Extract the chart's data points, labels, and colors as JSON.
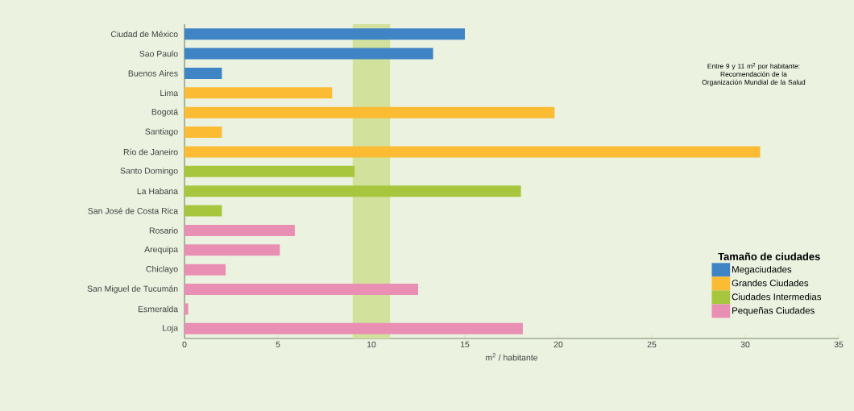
{
  "chart_data": {
    "type": "bar",
    "orientation": "horizontal",
    "xlabel": "m$^{2}$ / habitante",
    "legend_title": "Tamaño de ciudades",
    "legend": "bottom right",
    "categories": [
      "Ciudad de México",
      "Sao Paulo",
      "Buenos Aires",
      "Lima",
      "Bogotá",
      "Santiago",
      "Río de Janeiro",
      "Santo Domingo",
      "La Habana",
      "San José de Costa Rica",
      "Rosario",
      "Arequipa",
      "Chiclayo",
      "San Miguel de Tucumán",
      "Esmeralda",
      "Loja"
    ],
    "series": [
      {
        "name": "Megaciudades",
        "color": "#3f84c5",
        "values": [
          15,
          13.3,
          2,
          null,
          null,
          null,
          null,
          null,
          null,
          null,
          null,
          null,
          null,
          null,
          null,
          null
        ]
      },
      {
        "name": "Grandes Ciudades",
        "color": "#fbbb33",
        "values": [
          null,
          null,
          null,
          7.9,
          19.8,
          2,
          30.8,
          null,
          null,
          null,
          null,
          null,
          null,
          null,
          null,
          null
        ]
      },
      {
        "name": "Ciudades Intermedias",
        "color": "#a8c63d",
        "values": [
          null,
          null,
          null,
          null,
          null,
          null,
          null,
          9.1,
          18,
          2,
          null,
          null,
          null,
          null,
          null,
          null
        ]
      },
      {
        "name": "Pequeñas Ciudades",
        "color": "#ea8fb4",
        "values": [
          null,
          null,
          null,
          null,
          null,
          null,
          null,
          null,
          null,
          null,
          5.9,
          5.1,
          2.2,
          12.5,
          0.2,
          18.1
        ]
      }
    ],
    "xlim": [
      0,
      35
    ],
    "xticks": [
      0,
      5,
      10,
      15,
      20,
      25,
      30,
      35
    ],
    "bands": [
      {
        "axis": "x",
        "from": 9,
        "to": 11,
        "color": "#d2e19c"
      }
    ],
    "annotations": [
      "Entre 9 y 11 m$^{2}$ por habitante: Recomendación de la Organización Mundial de la Salud"
    ]
  }
}
